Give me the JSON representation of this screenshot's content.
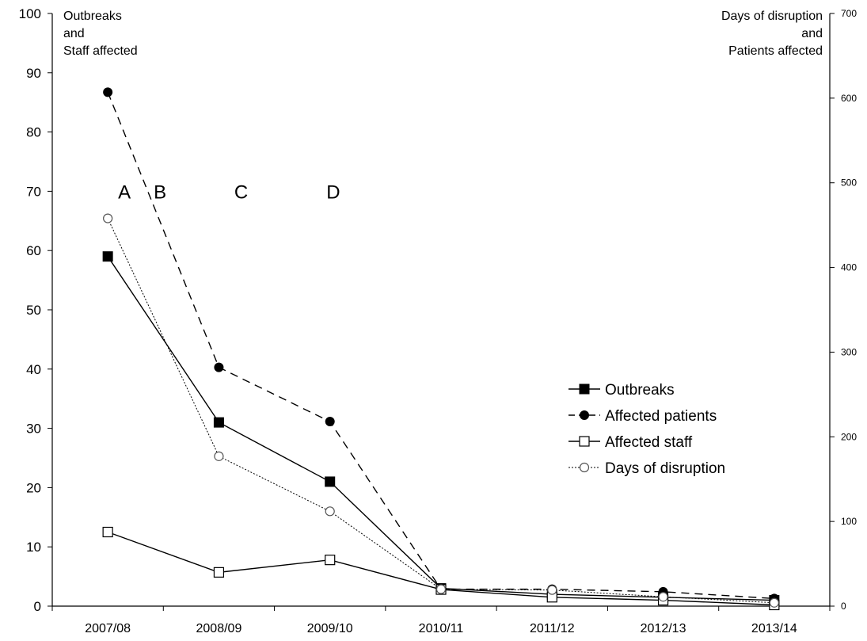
{
  "chart_data": {
    "type": "line",
    "categories": [
      "2007/08",
      "2008/09",
      "2009/10",
      "2010/11",
      "2011/12",
      "2012/13",
      "2013/14"
    ],
    "left_axis": {
      "title_lines": [
        "Outbreaks",
        "and",
        "Staff affected"
      ],
      "ylim": [
        0,
        100
      ],
      "ticks": [
        "0",
        "10",
        "20",
        "30",
        "40",
        "50",
        "60",
        "70",
        "80",
        "90",
        "100"
      ]
    },
    "right_axis": {
      "title_lines": [
        "Days of disruption",
        "and",
        "Patients affected"
      ],
      "ylim": [
        0,
        700
      ],
      "ticks": [
        "0",
        "100",
        "200",
        "300",
        "400",
        "500",
        "600",
        "700"
      ]
    },
    "series": [
      {
        "name": "Outbreaks",
        "axis": "left",
        "values": [
          59,
          31,
          21,
          3,
          2,
          1.5,
          1
        ],
        "style": "solid",
        "marker": "filled-square"
      },
      {
        "name": "Affected patients",
        "axis": "right",
        "values": [
          607,
          282,
          218,
          20,
          20,
          17,
          9
        ],
        "style": "dashed",
        "marker": "filled-circle"
      },
      {
        "name": "Affected staff",
        "axis": "left",
        "values": [
          12.5,
          5.7,
          7.8,
          2.8,
          1.5,
          1,
          0.2
        ],
        "style": "solid",
        "marker": "open-square"
      },
      {
        "name": "Days of disruption",
        "axis": "right",
        "values": [
          458,
          177,
          112,
          20,
          19,
          11,
          4
        ],
        "style": "dotted",
        "marker": "open-circle"
      }
    ],
    "annotations": [
      {
        "text": "A",
        "x_pos": 0.65,
        "y_left": 70
      },
      {
        "text": "B",
        "x_pos": 0.97,
        "y_left": 70
      },
      {
        "text": "C",
        "x_pos": 1.7,
        "y_left": 70
      },
      {
        "text": "D",
        "x_pos": 2.53,
        "y_left": 70
      }
    ],
    "legend": {
      "placement": "center-right"
    },
    "grid": false
  }
}
